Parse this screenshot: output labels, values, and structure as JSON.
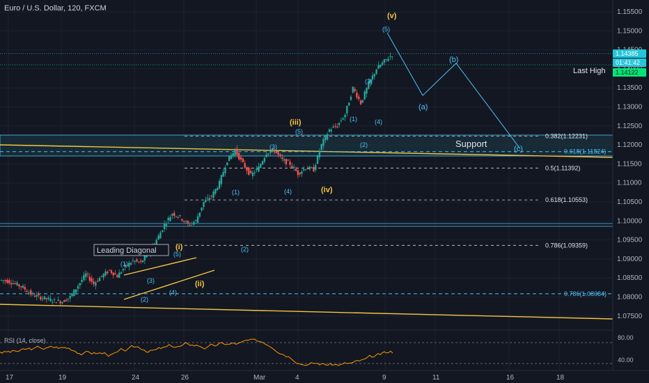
{
  "header": {
    "title": "Euro / U.S. Dollar, 120, FXCM"
  },
  "price_axis": {
    "ticks": [
      "1.15500",
      "1.15000",
      "1.14500",
      "1.14000",
      "1.13500",
      "1.13000",
      "1.12500",
      "1.12000",
      "1.11500",
      "1.11000",
      "1.10500",
      "1.10000",
      "1.09500",
      "1.09000",
      "1.08500",
      "1.08000",
      "1.07500"
    ],
    "price_badge": "1.14385",
    "countdown_badge": "01:41:42",
    "last_high_badge": "1.14122"
  },
  "time_axis": {
    "ticks": [
      "17",
      "19",
      "24",
      "26",
      "Mar",
      "4",
      "9",
      "11",
      "16",
      "18"
    ]
  },
  "annotations": {
    "leading_diagonal": "Leading Diagonal",
    "last_high": "Last High",
    "support": "Support"
  },
  "fib_levels": [
    {
      "label": "0.382(1.12231)",
      "price": 1.12231
    },
    {
      "label": "0.5(1.11392)",
      "price": 1.11392
    },
    {
      "label": "0.618(1.10553)",
      "price": 1.10553
    },
    {
      "label": "0.786(1.09359)",
      "price": 1.09359
    }
  ],
  "fib_levels_cyan": [
    {
      "label": "0.618(1.11824)",
      "price": 1.11824
    },
    {
      "label": "0.786(1.08084)",
      "price": 1.08084
    }
  ],
  "wave_labels_gold": [
    "(v)",
    "(iii)",
    "(iv)",
    "(i)",
    "(ii)"
  ],
  "wave_labels_cyan": [
    "(5)",
    "(3)",
    "(4)",
    "(1)",
    "(2)",
    "(5)",
    "(3)",
    "(4)",
    "(1)",
    "(2)",
    "(1)",
    "(3)",
    "(5)",
    "(2)",
    "(4)",
    "(a)",
    "(b)",
    "(c)"
  ],
  "rsi": {
    "label": "RSI (14, close)",
    "ticks": [
      "80.00",
      "40.00"
    ]
  },
  "colors": {
    "background": "#131722",
    "grid": "#1e2230",
    "up_candle": "#26a69a",
    "down_candle": "#ef5350",
    "fib_dashed": "#d1d4dc",
    "cyan": "#4fc3f7",
    "gold": "#f5c542",
    "green_line": "#00e676",
    "badge_blue": "#26c6da",
    "rsi_line": "#ff9800"
  },
  "chart_data": {
    "type": "candlestick",
    "title": "Euro / U.S. Dollar, 120, FXCM",
    "x_ticks": [
      "17",
      "19",
      "24",
      "26",
      "Mar",
      "4",
      "9",
      "11",
      "16",
      "18"
    ],
    "ylim": [
      1.073,
      1.158
    ],
    "path_close": [
      1.0845,
      1.0842,
      1.0835,
      1.0825,
      1.0808,
      1.08,
      1.0795,
      1.079,
      1.0788,
      1.08,
      1.083,
      1.086,
      1.0835,
      1.0855,
      1.087,
      1.0855,
      1.088,
      1.0895,
      1.089,
      1.092,
      1.095,
      1.099,
      1.102,
      1.101,
      1.099,
      1.1,
      1.105,
      1.1065,
      1.11,
      1.116,
      1.1185,
      1.115,
      1.112,
      1.114,
      1.118,
      1.1185,
      1.116,
      1.115,
      1.1125,
      1.114,
      1.1135,
      1.12,
      1.124,
      1.125,
      1.128,
      1.135,
      1.131,
      1.136,
      1.14,
      1.142,
      1.1438
    ],
    "projection": [
      [
        "1.1495",
        "peak"
      ],
      [
        "1.1330",
        "(a)"
      ],
      [
        "1.1415",
        "(b)"
      ],
      [
        "1.1190",
        "(c)"
      ]
    ],
    "rsi_ylim": [
      20,
      100
    ],
    "rsi_ticks": [
      80,
      40
    ]
  }
}
